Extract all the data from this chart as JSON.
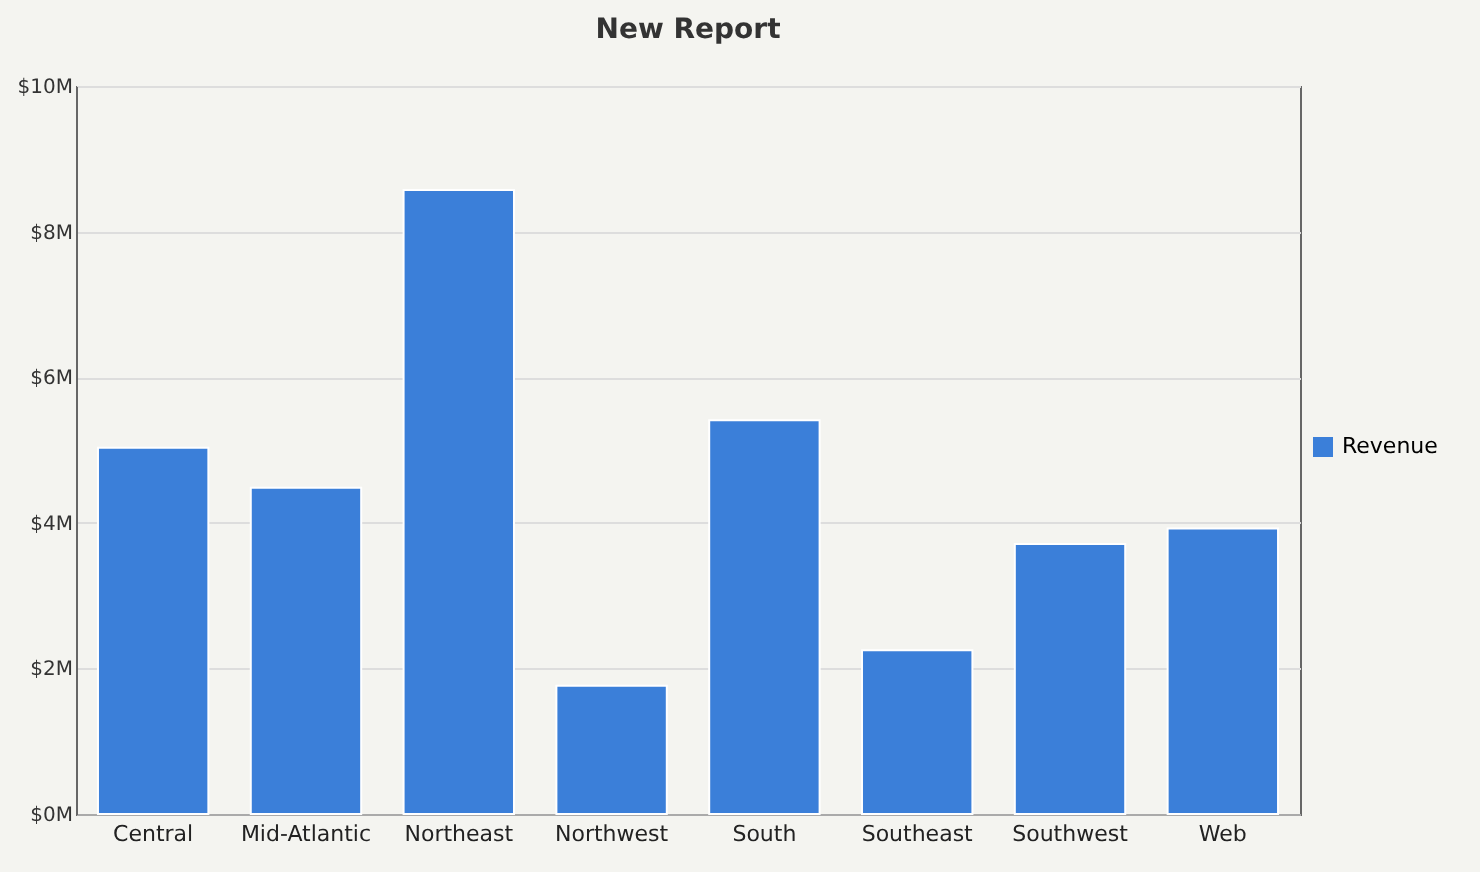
{
  "chart_data": {
    "type": "bar",
    "title": "New Report",
    "categories": [
      "Central",
      "Mid-Atlantic",
      "Northeast",
      "Northwest",
      "South",
      "Southeast",
      "Southwest",
      "Web"
    ],
    "series": [
      {
        "name": "Revenue",
        "color": "#3b7fd9",
        "values": [
          5.03,
          4.48,
          8.57,
          1.76,
          5.41,
          2.25,
          3.71,
          3.92
        ]
      }
    ],
    "ylim": [
      0,
      10
    ],
    "yticks": [
      {
        "value": 0,
        "label": "$0M"
      },
      {
        "value": 2,
        "label": "$2M"
      },
      {
        "value": 4,
        "label": "$4M"
      },
      {
        "value": 6,
        "label": "$6M"
      },
      {
        "value": 8,
        "label": "$8M"
      },
      {
        "value": 10,
        "label": "$10M"
      }
    ],
    "grid": "y",
    "legend": "right"
  }
}
